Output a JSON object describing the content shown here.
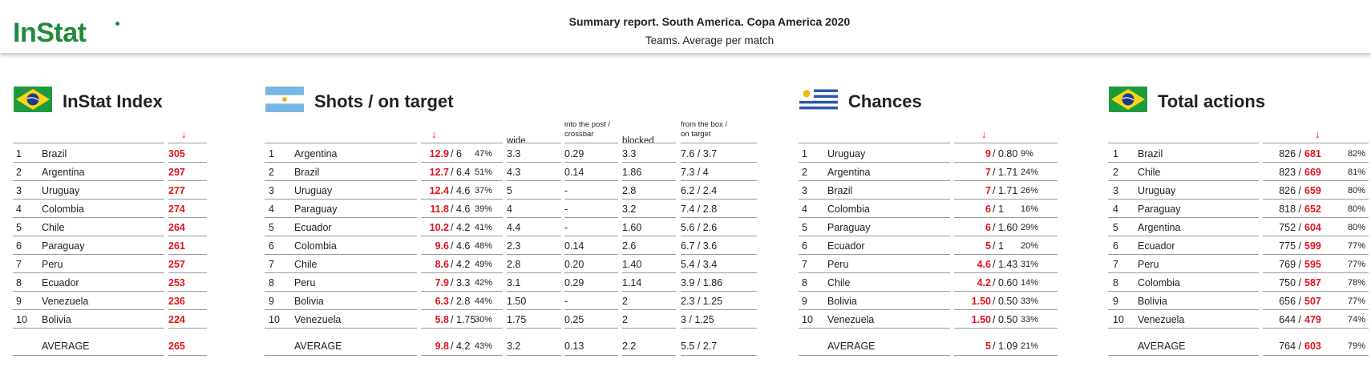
{
  "header": {
    "logo": "InStat",
    "title": "Summary report. South America. Copa America 2020",
    "subtitle": "Teams. Average per match"
  },
  "tables": [
    {
      "title": "InStat Index",
      "rows": [
        [
          "1",
          "Brazil",
          "305"
        ],
        [
          "2",
          "Argentina",
          "297"
        ],
        [
          "3",
          "Uruguay",
          "277"
        ],
        [
          "4",
          "Colombia",
          "274"
        ],
        [
          "5",
          "Chile",
          "264"
        ],
        [
          "6",
          "Paraguay",
          "261"
        ],
        [
          "7",
          "Peru",
          "257"
        ],
        [
          "8",
          "Ecuador",
          "253"
        ],
        [
          "9",
          "Venezuela",
          "236"
        ],
        [
          "10",
          "Bolivia",
          "224"
        ]
      ],
      "average": [
        "AVERAGE",
        "265"
      ]
    },
    {
      "title": "Shots / on target",
      "columns": [
        "wide",
        "into the post / crossbar",
        "blocked",
        "from the box / on target"
      ],
      "rows": [
        [
          "1",
          "Argentina",
          "12.9",
          "/ 6",
          "47%",
          "3.3",
          "0.29",
          "3.3",
          "7.6 / 3.7"
        ],
        [
          "2",
          "Brazil",
          "12.7",
          "/ 6.4",
          "51%",
          "4.3",
          "0.14",
          "1.86",
          "7.3 / 4"
        ],
        [
          "3",
          "Uruguay",
          "12.4",
          "/ 4.6",
          "37%",
          "5",
          "-",
          "2.8",
          "6.2 / 2.4"
        ],
        [
          "4",
          "Paraguay",
          "11.8",
          "/ 4.6",
          "39%",
          "4",
          "-",
          "3.2",
          "7.4 / 2.8"
        ],
        [
          "5",
          "Ecuador",
          "10.2",
          "/ 4.2",
          "41%",
          "4.4",
          "-",
          "1.60",
          "5.6 / 2.6"
        ],
        [
          "6",
          "Colombia",
          "9.6",
          "/ 4.6",
          "48%",
          "2.3",
          "0.14",
          "2.6",
          "6.7 / 3.6"
        ],
        [
          "7",
          "Chile",
          "8.6",
          "/ 4.2",
          "49%",
          "2.8",
          "0.20",
          "1.40",
          "5.4 / 3.4"
        ],
        [
          "8",
          "Peru",
          "7.9",
          "/ 3.3",
          "42%",
          "3.1",
          "0.29",
          "1.14",
          "3.9 / 1.86"
        ],
        [
          "9",
          "Bolivia",
          "6.3",
          "/ 2.8",
          "44%",
          "1.50",
          "-",
          "2",
          "2.3 / 1.25"
        ],
        [
          "10",
          "Venezuela",
          "5.8",
          "/ 1.75",
          "30%",
          "1.75",
          "0.25",
          "2",
          "3 / 1.25"
        ]
      ],
      "average": [
        "AVERAGE",
        "9.8",
        "/ 4.2",
        "43%",
        "3.2",
        "0.13",
        "2.2",
        "5.5 / 2.7"
      ]
    },
    {
      "title": "Chances",
      "rows": [
        [
          "1",
          "Uruguay",
          "9",
          "/ 0.80",
          "9%"
        ],
        [
          "2",
          "Argentina",
          "7",
          "/ 1.71",
          "24%"
        ],
        [
          "3",
          "Brazil",
          "7",
          "/ 1.71",
          "26%"
        ],
        [
          "4",
          "Colombia",
          "6",
          "/ 1",
          "16%"
        ],
        [
          "5",
          "Paraguay",
          "6",
          "/ 1.60",
          "29%"
        ],
        [
          "6",
          "Ecuador",
          "5",
          "/ 1",
          "20%"
        ],
        [
          "7",
          "Peru",
          "4.6",
          "/ 1.43",
          "31%"
        ],
        [
          "8",
          "Chile",
          "4.2",
          "/ 0.60",
          "14%"
        ],
        [
          "9",
          "Bolivia",
          "1.50",
          "/ 0.50",
          "33%"
        ],
        [
          "10",
          "Venezuela",
          "1.50",
          "/ 0.50",
          "33%"
        ]
      ],
      "average": [
        "AVERAGE",
        "5",
        "/ 1.09",
        "21%"
      ]
    },
    {
      "title": "Total actions",
      "rows": [
        [
          "1",
          "Brazil",
          "826 /",
          "681",
          "82%"
        ],
        [
          "2",
          "Chile",
          "823 /",
          "669",
          "81%"
        ],
        [
          "3",
          "Uruguay",
          "826 /",
          "659",
          "80%"
        ],
        [
          "4",
          "Paraguay",
          "818 /",
          "652",
          "80%"
        ],
        [
          "5",
          "Argentina",
          "752 /",
          "604",
          "80%"
        ],
        [
          "6",
          "Ecuador",
          "775 /",
          "599",
          "77%"
        ],
        [
          "7",
          "Peru",
          "769 /",
          "595",
          "77%"
        ],
        [
          "8",
          "Colombia",
          "750 /",
          "587",
          "78%"
        ],
        [
          "9",
          "Bolivia",
          "656 /",
          "507",
          "77%"
        ],
        [
          "10",
          "Venezuela",
          "644 /",
          "479",
          "74%"
        ]
      ],
      "average": [
        "AVERAGE",
        "764 /",
        "603",
        "79%"
      ]
    }
  ]
}
